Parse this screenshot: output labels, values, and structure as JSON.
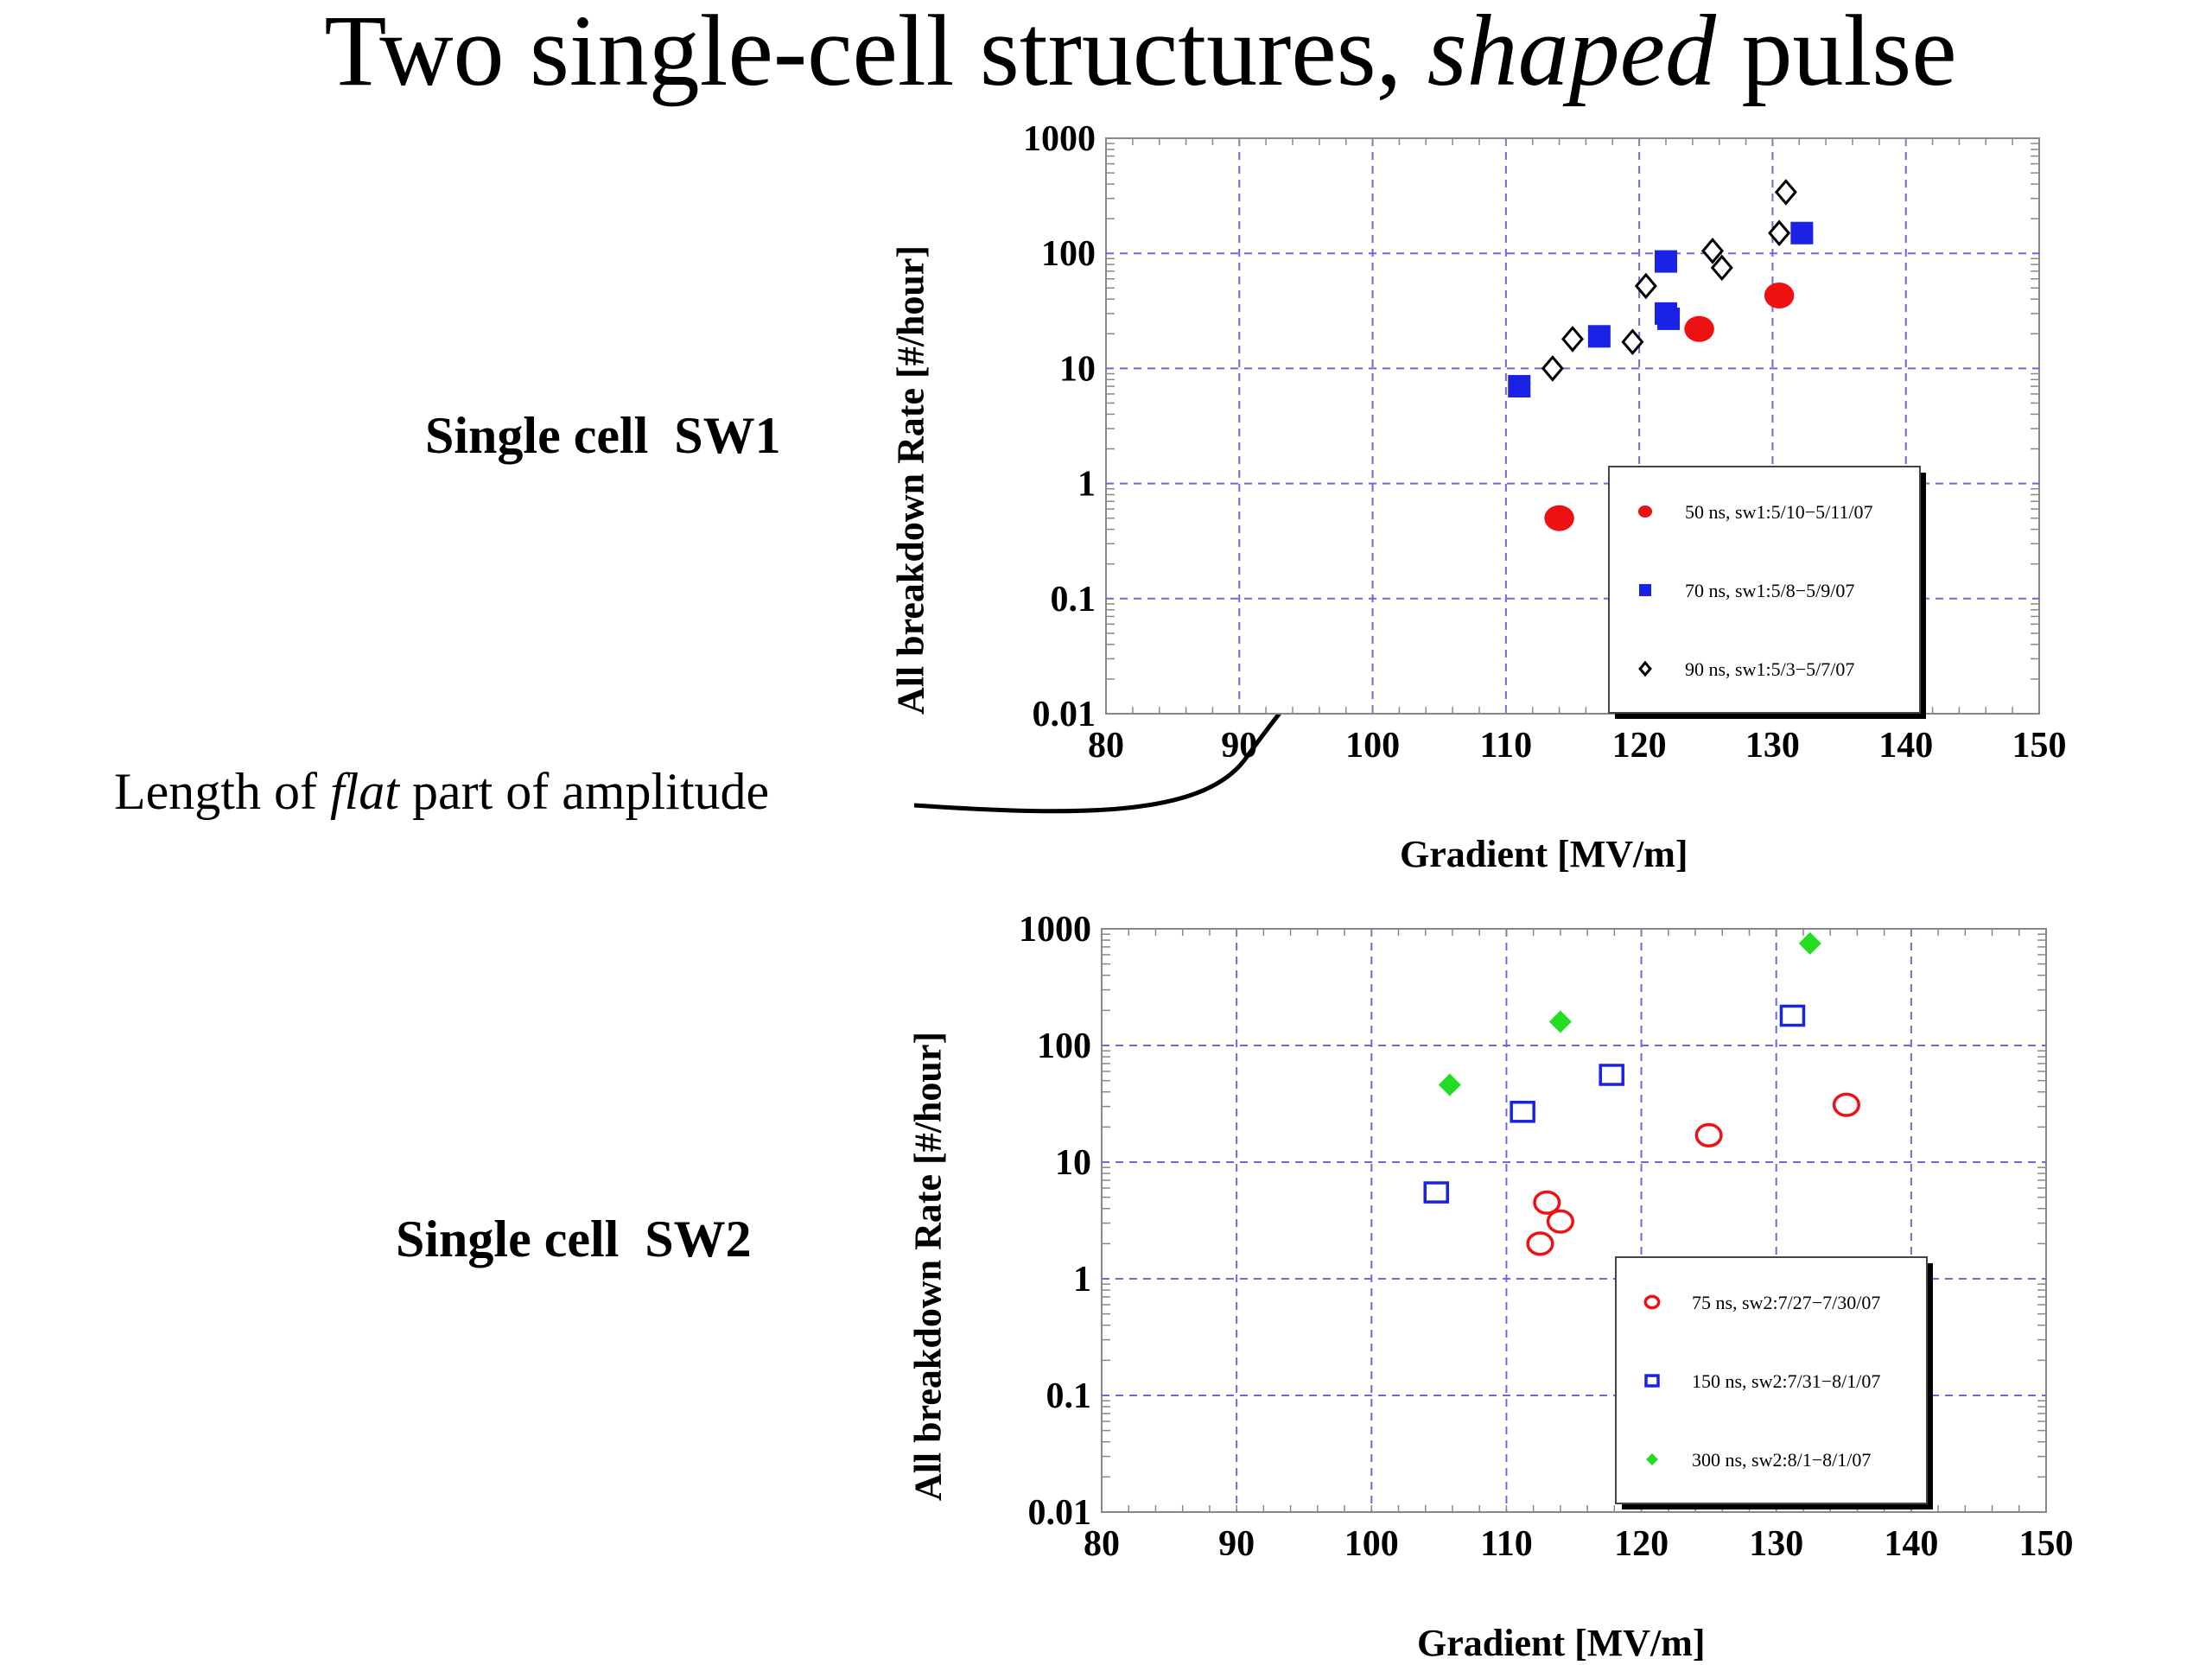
{
  "title": {
    "prefix": "Two single-cell structures, ",
    "emphasis": "shaped",
    "suffix": " pulse"
  },
  "row_labels": {
    "top": "Single cell  SW1",
    "bottom": "Single cell  SW2"
  },
  "annotation": {
    "prefix": "Length of ",
    "emphasis": "flat",
    "suffix": " part of amplitude"
  },
  "colors": {
    "red": "#ee1111",
    "blue": "#1a22e6",
    "green": "#22dd22",
    "grid": "#6a6ad8"
  },
  "chart_data": [
    {
      "type": "scatter",
      "title": "",
      "xlabel": "Gradient [MV/m]",
      "ylabel": "All breakdown Rate [#/hour]",
      "xlim": [
        80,
        150
      ],
      "ylim": [
        0.01,
        1000
      ],
      "yscale": "log",
      "grid": true,
      "legend_position": "bottom-right",
      "x_ticks": [
        "80",
        "90",
        "100",
        "110",
        "120",
        "130",
        "140",
        "150"
      ],
      "y_ticks": [
        "0.01",
        "0.1",
        "1",
        "10",
        "100",
        "1000"
      ],
      "series": [
        {
          "name": "50 ns, sw1:5/10−5/11/07",
          "marker": "filled-circle",
          "color": "#ee1111",
          "points": [
            [
              114,
              0.5
            ],
            [
              124.5,
              22
            ],
            [
              130.5,
              43
            ]
          ]
        },
        {
          "name": "70 ns, sw1:5/8−5/9/07",
          "marker": "filled-square",
          "color": "#1a22e6",
          "points": [
            [
              111,
              7
            ],
            [
              117,
              19
            ],
            [
              122,
              85
            ],
            [
              122,
              30
            ],
            [
              122.2,
              27
            ],
            [
              132.2,
              150
            ]
          ]
        },
        {
          "name": "90 ns, sw1:5/3−5/7/07",
          "marker": "open-diamond",
          "color": "#000000",
          "points": [
            [
              113.5,
              10
            ],
            [
              115,
              18
            ],
            [
              119.5,
              17
            ],
            [
              120.5,
              52
            ],
            [
              125.5,
              105
            ],
            [
              126.2,
              75
            ],
            [
              130.5,
              150
            ],
            [
              131,
              340
            ]
          ]
        }
      ]
    },
    {
      "type": "scatter",
      "title": "",
      "xlabel": "Gradient [MV/m]",
      "ylabel": "All breakdown Rate [#/hour]",
      "xlim": [
        80,
        150
      ],
      "ylim": [
        0.01,
        1000
      ],
      "yscale": "log",
      "grid": true,
      "legend_position": "bottom-right",
      "x_ticks": [
        "80",
        "90",
        "100",
        "110",
        "120",
        "130",
        "140",
        "150"
      ],
      "y_ticks": [
        "0.01",
        "0.1",
        "1",
        "10",
        "100",
        "1000"
      ],
      "series": [
        {
          "name": "75 ns, sw2:7/27−7/30/07",
          "marker": "open-circle",
          "color": "#ee1111",
          "points": [
            [
              112.5,
              2
            ],
            [
              113,
              4.5
            ],
            [
              114,
              3.1
            ],
            [
              125,
              17
            ],
            [
              135.2,
              31
            ]
          ]
        },
        {
          "name": "150 ns, sw2:7/31−8/1/07",
          "marker": "open-square",
          "color": "#1a22e6",
          "points": [
            [
              104.8,
              5.5
            ],
            [
              111.2,
              27
            ],
            [
              117.8,
              56
            ],
            [
              131.2,
              180
            ]
          ]
        },
        {
          "name": "300 ns, sw2:8/1−8/1/07",
          "marker": "filled-diamond",
          "color": "#22dd22",
          "points": [
            [
              105.8,
              46
            ],
            [
              114,
              160
            ],
            [
              132.5,
              750
            ]
          ]
        }
      ]
    }
  ]
}
